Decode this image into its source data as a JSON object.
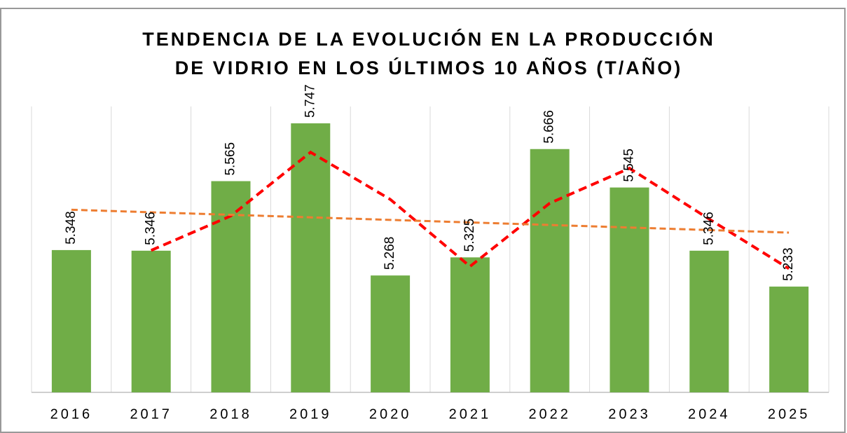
{
  "chart_data": {
    "type": "bar",
    "title": [
      "TENDENCIA DE LA EVOLUCIÓN EN LA PRODUCCIÓN",
      "DE VIDRIO EN LOS ÚLTIMOS 10 AÑOS (T/AÑO)"
    ],
    "categories": [
      "2016",
      "2017",
      "2018",
      "2019",
      "2020",
      "2021",
      "2022",
      "2023",
      "2024",
      "2025"
    ],
    "values": [
      5.348,
      5.346,
      5.565,
      5.747,
      5.268,
      5.325,
      5.666,
      5.545,
      5.346,
      5.233
    ],
    "color": "#70ad47",
    "lines": [
      {
        "color": "#ff0000",
        "values": [
          null,
          5.347,
          5.4555,
          5.656,
          5.5075,
          5.2965,
          5.4955,
          5.6055,
          5.4455,
          5.2895
        ]
      },
      {
        "color": "#ed7d31",
        "values": [
          5.475,
          5.467,
          5.459,
          5.451,
          5.443,
          5.435,
          5.427,
          5.419,
          5.411,
          5.403
        ]
      }
    ],
    "ylim": [
      4.9,
      5.8
    ],
    "grid": true
  }
}
